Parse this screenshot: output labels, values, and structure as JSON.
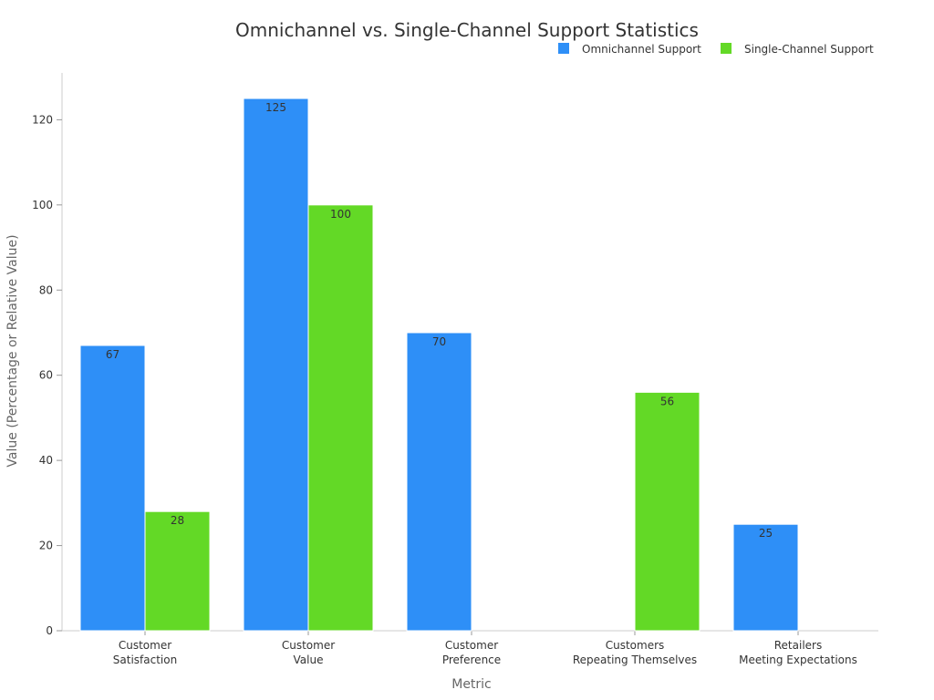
{
  "chart_data": {
    "type": "bar",
    "title": "Omnichannel vs. Single-Channel Support Statistics",
    "xlabel": "Metric",
    "ylabel": "Value (Percentage or Relative Value)",
    "categories": [
      [
        "Customer",
        "Satisfaction"
      ],
      [
        "Customer",
        "Value"
      ],
      [
        "Customer",
        "Preference"
      ],
      [
        "Customers",
        "Repeating Themselves"
      ],
      [
        "Retailers",
        "Meeting Expectations"
      ]
    ],
    "series": [
      {
        "name": "Omnichannel Support",
        "color": "#2e8ff7",
        "values": [
          67,
          125,
          70,
          null,
          25
        ]
      },
      {
        "name": "Single-Channel Support",
        "color": "#63d926",
        "values": [
          28,
          100,
          null,
          56,
          null
        ]
      }
    ],
    "ylim": [
      0,
      131
    ],
    "yticks": [
      0,
      20,
      40,
      60,
      80,
      100,
      120
    ],
    "grid": false,
    "legend_position": "top-right"
  }
}
